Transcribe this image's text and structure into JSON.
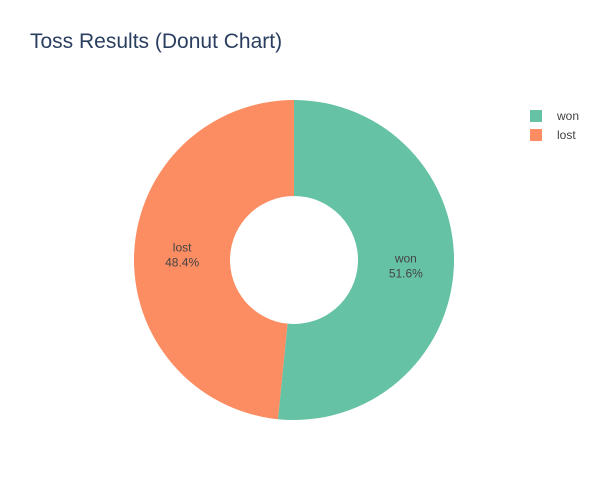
{
  "chart_data": {
    "type": "pie",
    "title": "Toss Results (Donut Chart)",
    "hole": 0.4,
    "labels": [
      "won",
      "lost"
    ],
    "values": [
      51.6,
      48.4
    ],
    "percent_labels": [
      "51.6%",
      "48.4%"
    ],
    "colors": [
      "#66c2a5",
      "#fc8d62"
    ],
    "legend": "top-right",
    "sort": "descending",
    "direction": "clockwise",
    "rotation_start": "top"
  }
}
